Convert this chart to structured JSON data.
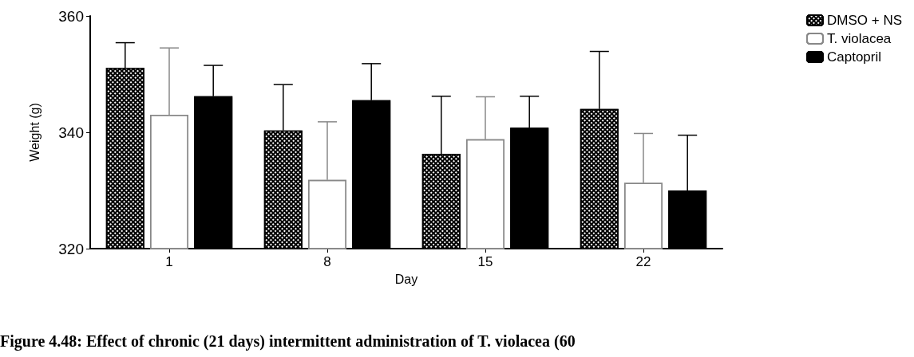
{
  "chart_data": {
    "type": "bar",
    "xlabel": "Day",
    "ylabel": "Weight (g)",
    "categories": [
      "1",
      "8",
      "15",
      "22"
    ],
    "ylim": [
      320,
      360
    ],
    "yticks": [
      320,
      340,
      360
    ],
    "grid": false,
    "legend": "top right",
    "series": [
      {
        "name": "DMSO + NS",
        "color": "#000000",
        "values": [
          351.1,
          340.3,
          336.3,
          344.0
        ],
        "errors": [
          [
            351.1,
            355.4
          ],
          [
            340.3,
            348.2
          ],
          [
            336.3,
            346.2
          ],
          [
            344.0,
            353.9
          ]
        ]
      },
      {
        "name": "T. violacea",
        "color": "#ffffff",
        "values": [
          343.0,
          331.8,
          338.8,
          331.3
        ],
        "errors": [
          [
            343.0,
            354.5
          ],
          [
            331.8,
            341.8
          ],
          [
            338.8,
            346.1
          ],
          [
            331.3,
            339.8
          ]
        ]
      },
      {
        "name": "Captopril",
        "color": "#000000",
        "values": [
          346.2,
          345.5,
          340.8,
          330.0
        ],
        "errors": [
          [
            346.2,
            351.5
          ],
          [
            345.5,
            351.8
          ],
          [
            340.8,
            346.2
          ],
          [
            330.0,
            339.5
          ]
        ]
      }
    ],
    "annotations": [
      "Figure 4.48: Effect of chronic (21 days) intermittent administration of T. violacea (60"
    ]
  }
}
